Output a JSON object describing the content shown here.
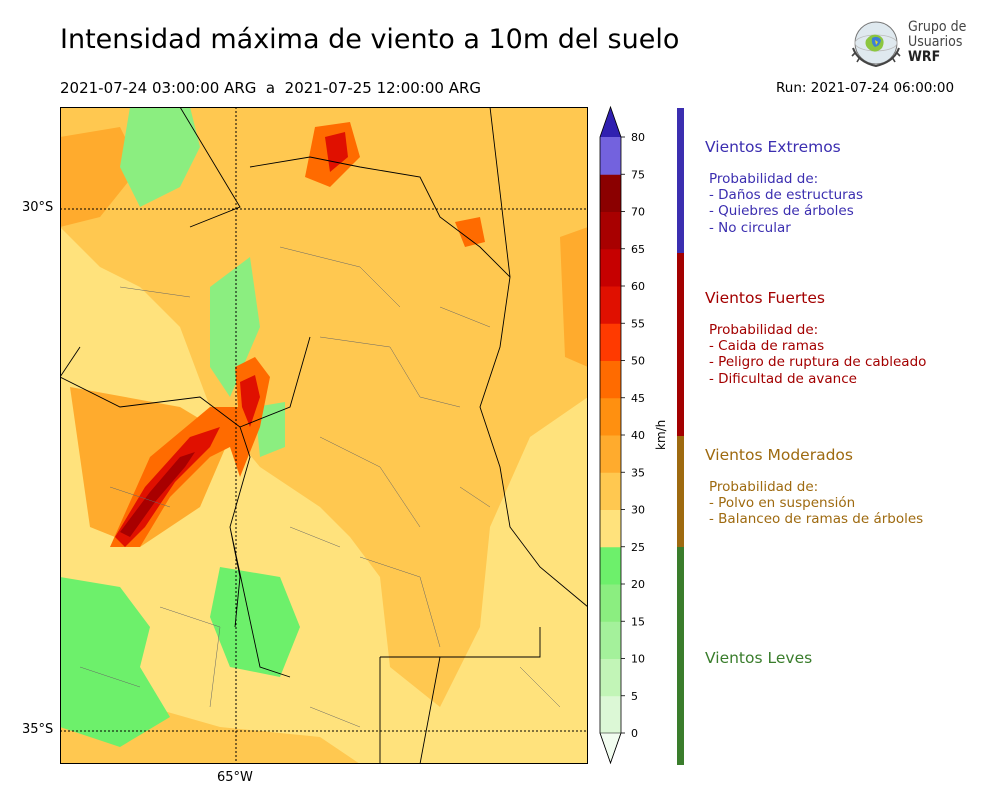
{
  "header": {
    "title": "Intensidad máxima de viento a 10m del suelo",
    "period": "2021-07-24 03:00:00 ARG  a  2021-07-25 12:00:00 ARG",
    "run": "Run: 2021-07-24 06:00:00"
  },
  "logo": {
    "line1": "Grupo de",
    "line2": "Usuarios",
    "line3": "WRF",
    "icon": "globe-icon"
  },
  "map": {
    "lat_labels": [
      "30°S",
      "35°S"
    ],
    "lon_labels": [
      "65°W"
    ],
    "field": "max 10m wind speed"
  },
  "colorbar": {
    "unit": "km/h",
    "ticks": [
      "0",
      "5",
      "10",
      "15",
      "20",
      "25",
      "30",
      "35",
      "40",
      "45",
      "50",
      "55",
      "60",
      "65",
      "70",
      "75",
      "80"
    ],
    "colors": [
      "#f2fdf0",
      "#dcf8d6",
      "#c2f5b7",
      "#a4f19b",
      "#8bee80",
      "#6df06b",
      "#ffe27c",
      "#ffc850",
      "#ffab2d",
      "#ff9010",
      "#ff6b00",
      "#ff3a00",
      "#e01000",
      "#c60000",
      "#a80000",
      "#8b0000",
      "#7362de",
      "#5443d3",
      "#4030c3",
      "#3020b0"
    ],
    "extend": "both"
  },
  "categories": [
    {
      "title": "Vientos Extremos",
      "color": "#3b2eb0",
      "lines": [
        "Probabilidad de:",
        "- Daños de estructuras",
        "- Quiebres de árboles",
        "- No circular"
      ]
    },
    {
      "title": "Vientos Fuertes",
      "color": "#a30000",
      "lines": [
        "Probabilidad de:",
        "- Caida de ramas",
        "- Peligro de ruptura de cableado",
        "- Dificultad de avance"
      ]
    },
    {
      "title": "Vientos Moderados",
      "color": "#9e6a10",
      "lines": [
        "Probabilidad de:",
        "- Polvo en suspensión",
        "- Balanceo de ramas de árboles"
      ]
    },
    {
      "title": "Vientos Leves",
      "color": "#3a7d2c",
      "lines": []
    }
  ]
}
